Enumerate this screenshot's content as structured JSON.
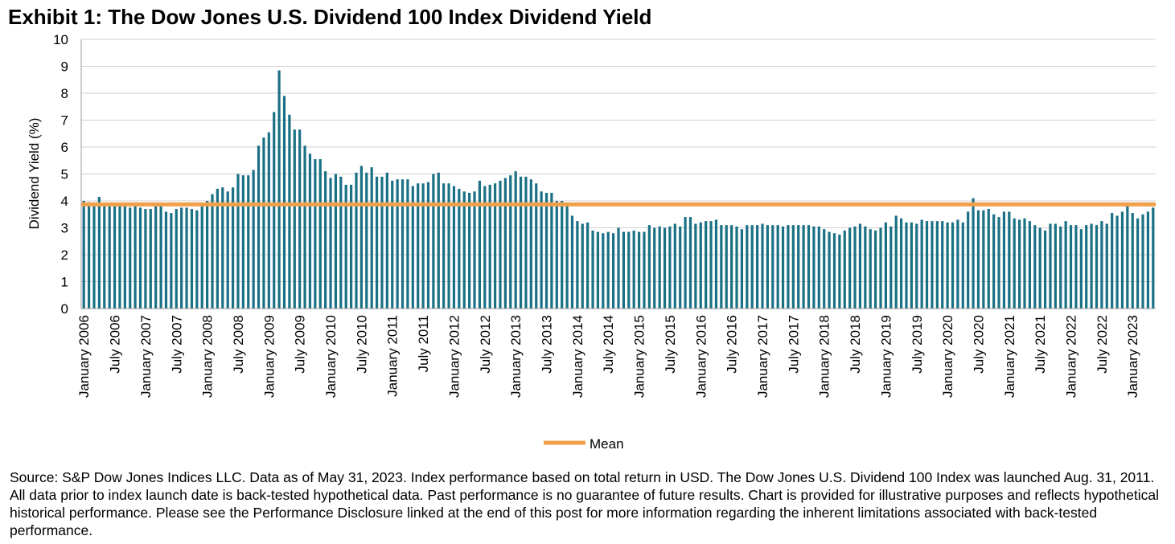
{
  "chart_data": {
    "type": "bar",
    "title": "Exhibit 1: The Dow Jones U.S. Dividend 100 Index Dividend Yield",
    "y_label": "Dividend Yield (%)",
    "note": "Source: S&P Dow Jones Indices LLC. Data as of May 31, 2023. Index performance based on total return in USD. The Dow Jones U.S. Dividend 100 Index was launched Aug. 31, 2011. All data prior to index launch date is back-tested hypothetical data. Past performance is no guarantee of future results. Chart is provided for illustrative purposes and reflects hypothetical historical performance. Please see the Performance Disclosure linked at the end of this post for more information regarding the inherent limitations associated with back-tested performance.",
    "categories": [
      "January 2006",
      null,
      null,
      null,
      null,
      null,
      "July 2006",
      null,
      null,
      null,
      null,
      null,
      "January 2007",
      null,
      null,
      null,
      null,
      null,
      "July 2007",
      null,
      null,
      null,
      null,
      null,
      "January 2008",
      null,
      null,
      null,
      null,
      null,
      "July 2008",
      null,
      null,
      null,
      null,
      null,
      "January 2009",
      null,
      null,
      null,
      null,
      null,
      "July 2009",
      null,
      null,
      null,
      null,
      null,
      "January 2010",
      null,
      null,
      null,
      null,
      null,
      "July 2010",
      null,
      null,
      null,
      null,
      null,
      "January 2011",
      null,
      null,
      null,
      null,
      null,
      "July 2011",
      null,
      null,
      null,
      null,
      null,
      "January 2012",
      null,
      null,
      null,
      null,
      null,
      "July 2012",
      null,
      null,
      null,
      null,
      null,
      "January 2013",
      null,
      null,
      null,
      null,
      null,
      "July 2013",
      null,
      null,
      null,
      null,
      null,
      "January 2014",
      null,
      null,
      null,
      null,
      null,
      "July 2014",
      null,
      null,
      null,
      null,
      null,
      "January 2015",
      null,
      null,
      null,
      null,
      null,
      "July 2015",
      null,
      null,
      null,
      null,
      null,
      "January 2016",
      null,
      null,
      null,
      null,
      null,
      "July 2016",
      null,
      null,
      null,
      null,
      null,
      "January 2017",
      null,
      null,
      null,
      null,
      null,
      "July 2017",
      null,
      null,
      null,
      null,
      null,
      "January 2018",
      null,
      null,
      null,
      null,
      null,
      "July 2018",
      null,
      null,
      null,
      null,
      null,
      "January 2019",
      null,
      null,
      null,
      null,
      null,
      "July 2019",
      null,
      null,
      null,
      null,
      null,
      "January 2020",
      null,
      null,
      null,
      null,
      null,
      "July 2020",
      null,
      null,
      null,
      null,
      null,
      "January 2021",
      null,
      null,
      null,
      null,
      null,
      "July 2021",
      null,
      null,
      null,
      null,
      null,
      "January 2022",
      null,
      null,
      null,
      null,
      null,
      "July 2022",
      null,
      null,
      null,
      null,
      null,
      "January 2023",
      null,
      null,
      null,
      null
    ],
    "values": [
      4.0,
      3.95,
      3.85,
      4.15,
      3.9,
      3.85,
      3.85,
      3.8,
      3.8,
      3.75,
      3.8,
      3.75,
      3.7,
      3.7,
      3.8,
      3.8,
      3.6,
      3.55,
      3.7,
      3.75,
      3.75,
      3.7,
      3.65,
      3.8,
      4.0,
      4.25,
      4.45,
      4.5,
      4.35,
      4.5,
      5.0,
      4.95,
      4.95,
      5.15,
      6.05,
      6.35,
      6.55,
      7.3,
      8.85,
      7.9,
      7.2,
      6.65,
      6.65,
      6.05,
      5.75,
      5.55,
      5.55,
      5.1,
      4.85,
      5.0,
      4.9,
      4.6,
      4.6,
      5.05,
      5.3,
      5.05,
      5.25,
      4.9,
      4.9,
      5.05,
      4.75,
      4.8,
      4.8,
      4.8,
      4.55,
      4.65,
      4.65,
      4.7,
      5.0,
      5.05,
      4.65,
      4.65,
      4.55,
      4.45,
      4.35,
      4.3,
      4.35,
      4.75,
      4.55,
      4.6,
      4.65,
      4.75,
      4.85,
      4.95,
      5.1,
      4.9,
      4.9,
      4.8,
      4.65,
      4.35,
      4.3,
      4.3,
      4.0,
      4.0,
      3.85,
      3.45,
      3.25,
      3.15,
      3.2,
      2.9,
      2.85,
      2.8,
      2.85,
      2.8,
      3.0,
      2.85,
      2.85,
      2.9,
      2.85,
      2.85,
      3.1,
      3.0,
      3.05,
      3.0,
      3.05,
      3.15,
      3.05,
      3.4,
      3.4,
      3.15,
      3.2,
      3.25,
      3.25,
      3.3,
      3.1,
      3.1,
      3.1,
      3.05,
      2.95,
      3.1,
      3.1,
      3.1,
      3.15,
      3.1,
      3.1,
      3.1,
      3.05,
      3.1,
      3.1,
      3.1,
      3.1,
      3.1,
      3.05,
      3.05,
      2.95,
      2.85,
      2.8,
      2.75,
      2.9,
      3.0,
      3.05,
      3.15,
      3.05,
      2.95,
      2.9,
      3.0,
      3.2,
      3.05,
      3.45,
      3.35,
      3.2,
      3.2,
      3.15,
      3.3,
      3.25,
      3.25,
      3.25,
      3.25,
      3.2,
      3.2,
      3.3,
      3.2,
      3.6,
      4.1,
      3.65,
      3.65,
      3.7,
      3.5,
      3.4,
      3.6,
      3.6,
      3.35,
      3.3,
      3.35,
      3.25,
      3.1,
      3.0,
      2.9,
      3.15,
      3.15,
      3.05,
      3.25,
      3.1,
      3.1,
      2.95,
      3.1,
      3.15,
      3.1,
      3.25,
      3.15,
      3.55,
      3.45,
      3.6,
      3.8,
      3.55,
      3.35,
      3.5,
      3.6,
      3.75
    ],
    "color": "#1a7085",
    "reference_line": {
      "name": "Mean",
      "value": 3.87,
      "color": "#f0a04b"
    },
    "ylim": [
      0,
      10
    ],
    "yticks": [
      0,
      1,
      2,
      3,
      4,
      5,
      6,
      7,
      8,
      9,
      10
    ],
    "grid": true
  }
}
